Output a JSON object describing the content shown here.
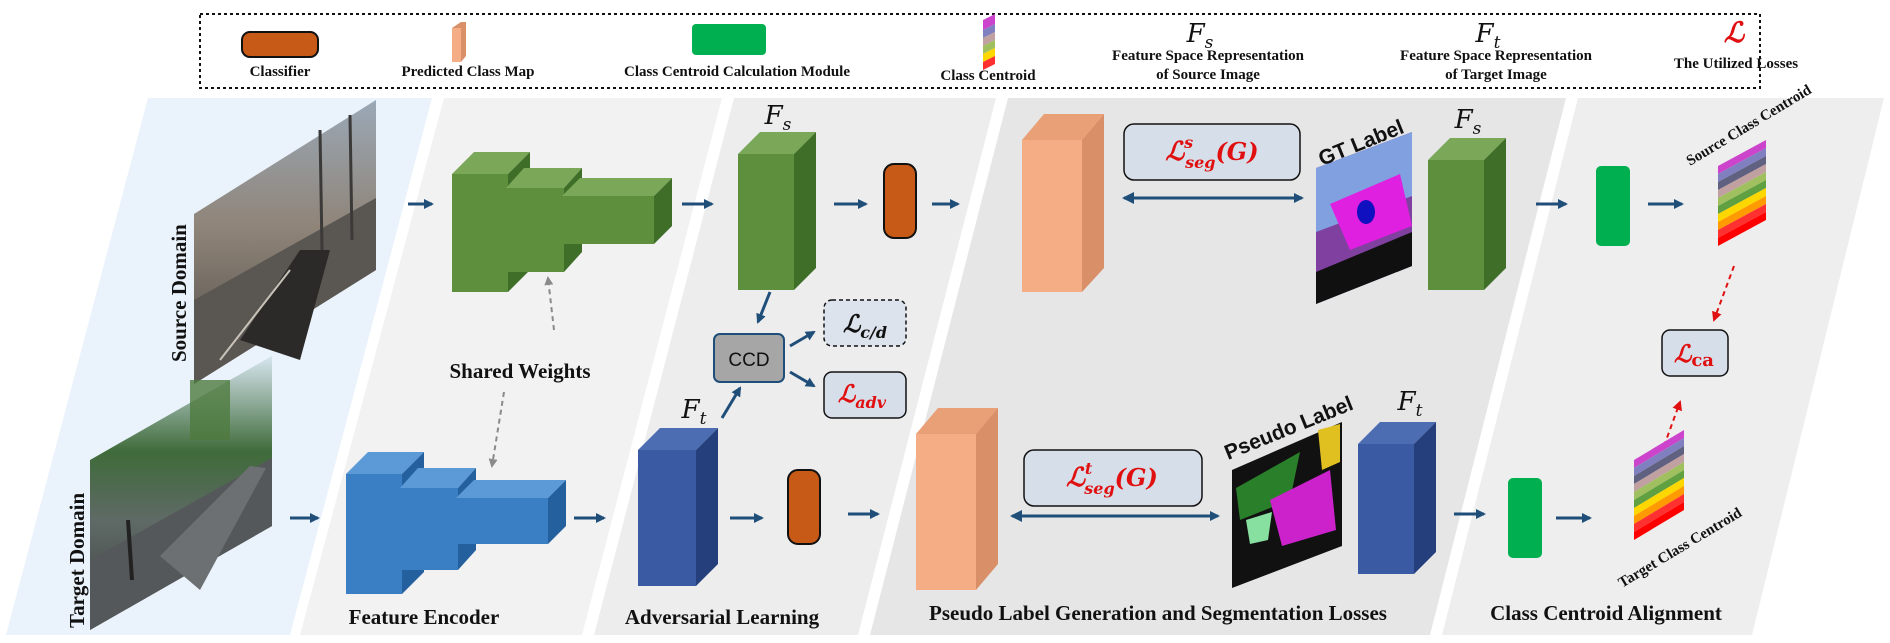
{
  "legend": {
    "classifier": "Classifier",
    "predicted_class_map": "Predicted Class Map",
    "class_centroid_module": "Class Centroid Calculation Module",
    "class_centroid": "Class Centroid",
    "fs_symbol_base": "F",
    "fs_symbol_sub": "s",
    "fs_line1": "Feature Space Representation",
    "fs_line2": "of Source Image",
    "ft_symbol_base": "F",
    "ft_symbol_sub": "t",
    "ft_line1": "Feature Space Representation",
    "ft_line2": "of Target Image",
    "loss_symbol": "ℒ",
    "utilized_losses": "The Utilized Losses"
  },
  "domains": {
    "source": "Source Domain",
    "target": "Target  Domain"
  },
  "sections": {
    "feature_encoder": "Feature Encoder",
    "adversarial": "Adversarial Learning",
    "pseudo": "Pseudo Label Generation and Segmentation Losses",
    "alignment": "Class Centroid Alignment"
  },
  "labels": {
    "shared_weights": "Shared Weights",
    "ccd": "CCD",
    "gt_label": "GT Label",
    "pseudo_label": "Pseudo Label",
    "source_centroid": "Source Class Centroid",
    "target_centroid": "Target Class Centroid",
    "fs_base": "F",
    "fs_sub": "s",
    "ft_base": "F",
    "ft_sub": "t"
  },
  "losses": {
    "script_l": "ℒ",
    "cd_sub": "c/d",
    "adv_sub": "adv",
    "seg_s_sub": "seg",
    "seg_s_sup": "s",
    "seg_t_sub": "seg",
    "seg_t_sup": "t",
    "seg_arg": "(G)",
    "ca_sub": "ca"
  },
  "colors": {
    "green_front": "#5d8f3c",
    "green_side": "#3f6e28",
    "green_top": "#7aa858",
    "blue_front": "#3a7fc4",
    "blue_side": "#245f9e",
    "blue_top": "#5b9ad6",
    "navy_front": "#3a5aa3",
    "navy_side": "#243f7c",
    "peach_front": "#f4ad85",
    "peach_side": "#d98f68",
    "classifier": "#c75a17",
    "module_green": "#00b050",
    "arrow": "#1f4e79",
    "loss_red": "#e01010"
  }
}
